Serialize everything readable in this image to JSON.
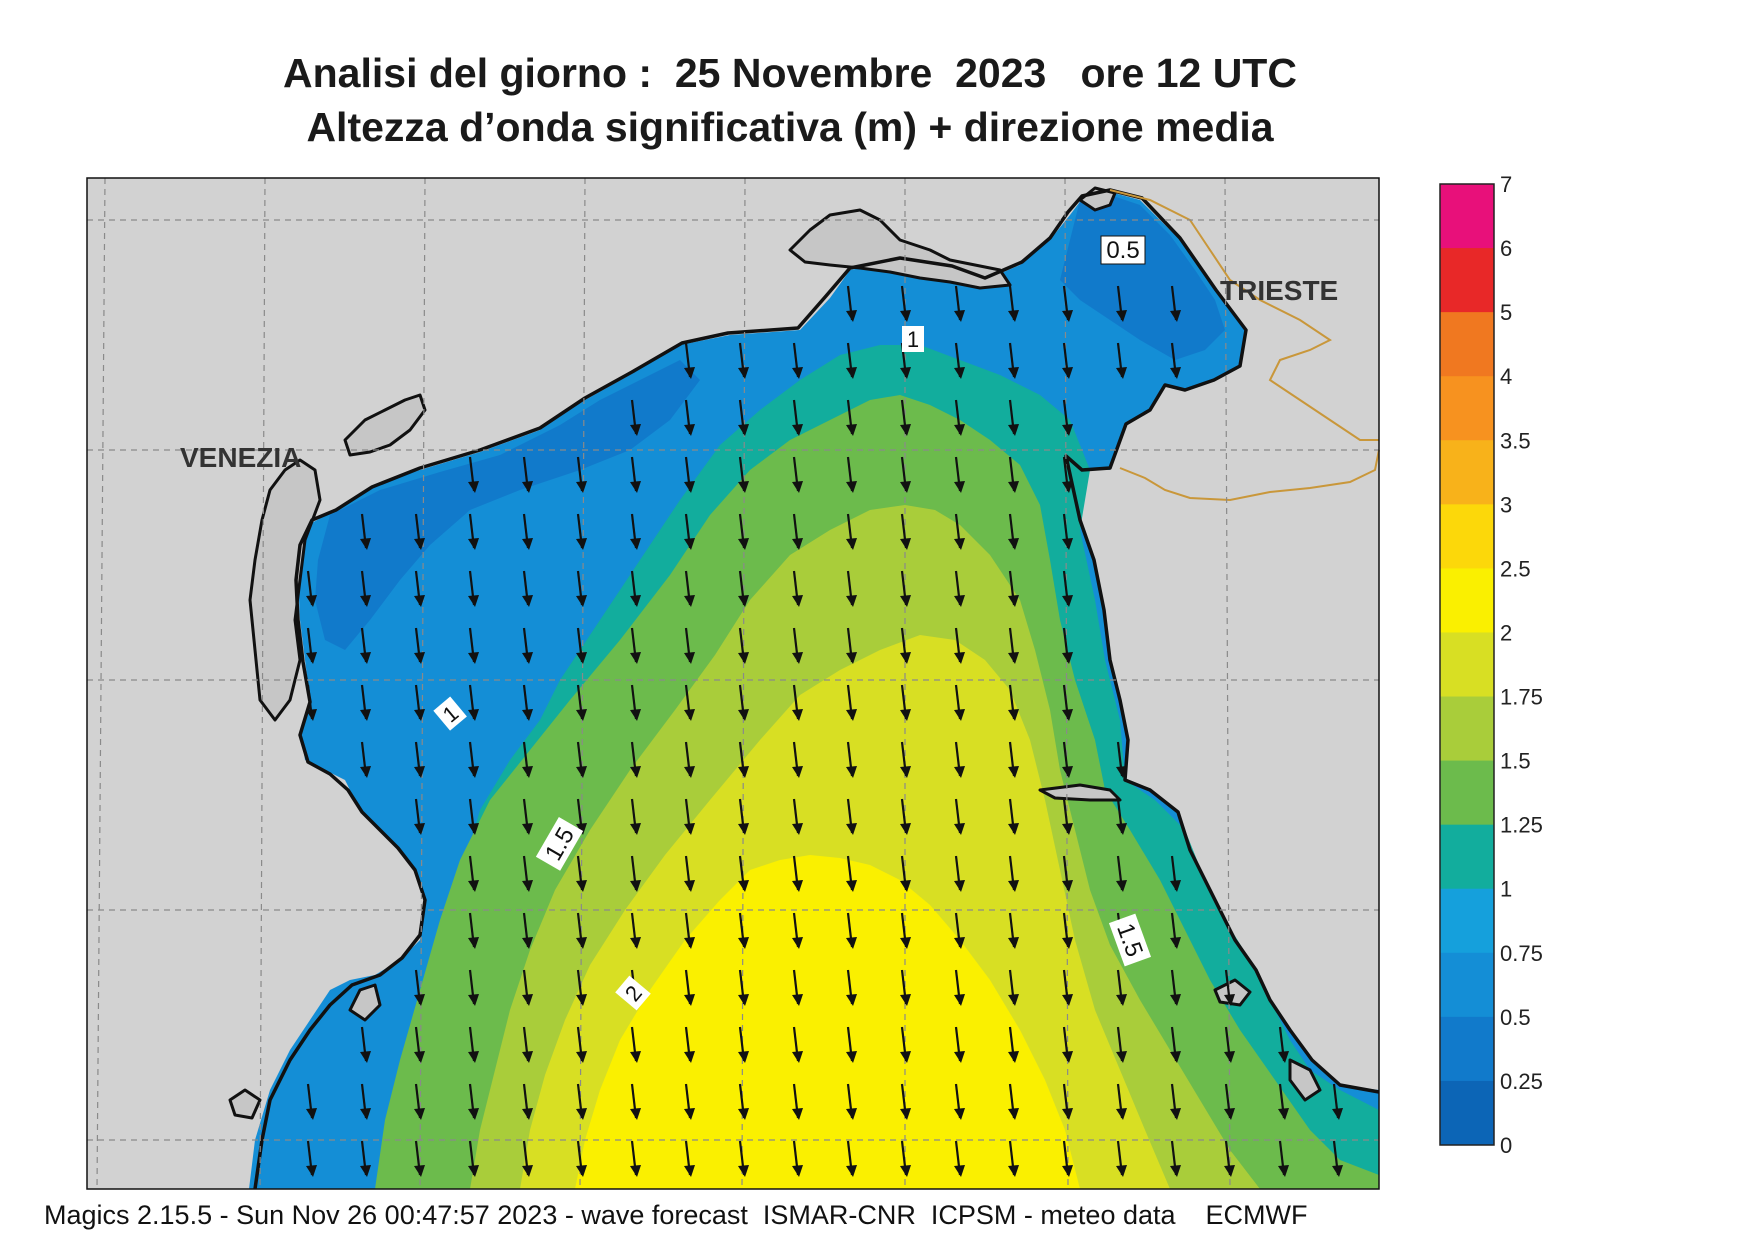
{
  "title": {
    "line1": "Analisi del giorno :  25 Novembre  2023   ore 12 UTC",
    "line2": "Altezza d’onda significativa (m) + direzione media"
  },
  "cities": {
    "venezia": "VENEZIA",
    "trieste": "TRIESTE"
  },
  "contour_labels": [
    "0.5",
    "1",
    "1",
    "1.5",
    "1.5",
    "2"
  ],
  "legend": {
    "ticks": [
      "7",
      "6",
      "5",
      "4",
      "3.5",
      "3",
      "2.5",
      "2",
      "1.75",
      "1.5",
      "1.25",
      "1",
      "0.75",
      "0.5",
      "0.25",
      "0"
    ],
    "colors": [
      "#e8107a",
      "#e82828",
      "#f07820",
      "#f7921f",
      "#f8b21a",
      "#fcd80a",
      "#faf000",
      "#d8df23",
      "#a9cd3a",
      "#6cbb4c",
      "#12ad9d",
      "#15a0dc",
      "#148ed6",
      "#117acb",
      "#0c65b6"
    ]
  },
  "arrow_direction": "south",
  "footer": "Magics 2.15.5 - Sun Nov 26 00:47:57 2023 - wave forecast  ISMAR-CNR  ICPSM - meteo data    ECMWF"
}
